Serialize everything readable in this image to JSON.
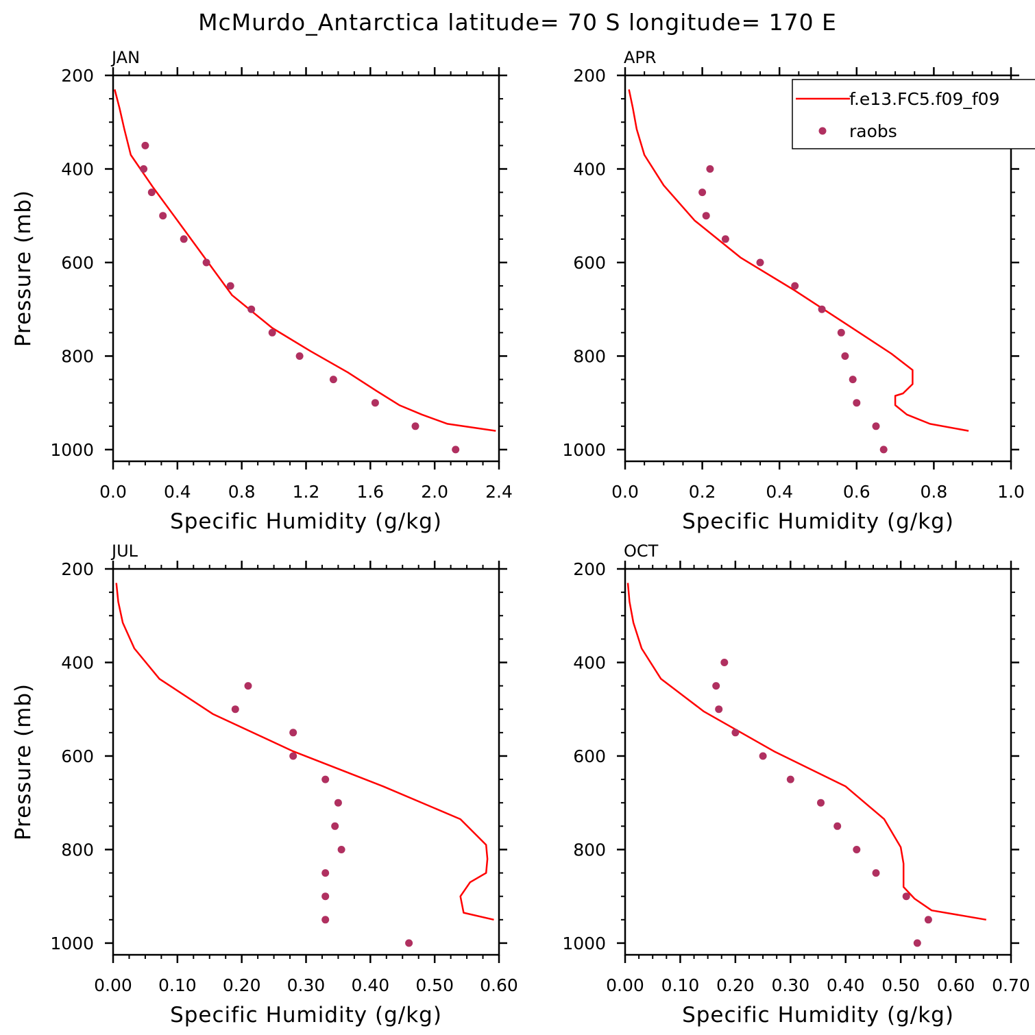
{
  "figure": {
    "title": "McMurdo_Antarctica  latitude= 70 S longitude= 170 E",
    "colors": {
      "model": "#ff0000",
      "obs": "#b03060",
      "axes": "#000000"
    }
  },
  "legend": {
    "entries": [
      {
        "label": "f.e13.FC5.f09_f09",
        "style": "line",
        "color": "#ff0000"
      },
      {
        "label": "raobs",
        "style": "marker",
        "color": "#b03060"
      }
    ]
  },
  "chart_data": [
    {
      "id": "jan",
      "type": "line",
      "title": "JAN",
      "xlabel": "Specific Humidity (g/kg)",
      "ylabel": "Pressure (mb)",
      "xlim": [
        0,
        2.4
      ],
      "ylim": [
        200,
        1025
      ],
      "y_inverted": true,
      "x_ticks": [
        "0.0",
        "0.4",
        "0.8",
        "1.2",
        "1.6",
        "2.0",
        "2.4"
      ],
      "y_ticks": [
        "200",
        "400",
        "600",
        "800",
        "1000"
      ],
      "series": [
        {
          "name": "f.e13.FC5.f09_f09",
          "style": "line",
          "x": [
            0.01,
            0.04,
            0.07,
            0.11,
            0.25,
            0.4,
            0.57,
            0.74,
            0.99,
            1.23,
            1.46,
            1.64,
            1.78,
            1.92,
            2.08,
            2.38
          ],
          "y": [
            230,
            270,
            315,
            370,
            440,
            510,
            590,
            670,
            740,
            790,
            835,
            875,
            905,
            925,
            945,
            960
          ]
        },
        {
          "name": "raobs",
          "style": "marker",
          "x": [
            0.2,
            0.19,
            0.24,
            0.31,
            0.44,
            0.58,
            0.73,
            0.86,
            0.99,
            1.16,
            1.37,
            1.63,
            1.88,
            2.13
          ],
          "y": [
            350,
            400,
            450,
            500,
            550,
            600,
            650,
            700,
            750,
            800,
            850,
            900,
            950,
            1000
          ]
        }
      ]
    },
    {
      "id": "apr",
      "type": "line",
      "title": "APR",
      "xlabel": "Specific Humidity (g/kg)",
      "ylabel": "",
      "xlim": [
        0,
        1.0
      ],
      "ylim": [
        200,
        1025
      ],
      "y_inverted": true,
      "x_ticks": [
        "0.0",
        "0.2",
        "0.4",
        "0.6",
        "0.8",
        "1.0"
      ],
      "y_ticks": [
        "200",
        "400",
        "600",
        "800",
        "1000"
      ],
      "series": [
        {
          "name": "f.e13.FC5.f09_f09",
          "style": "line",
          "x": [
            0.01,
            0.02,
            0.03,
            0.05,
            0.1,
            0.18,
            0.3,
            0.44,
            0.57,
            0.69,
            0.745,
            0.745,
            0.72,
            0.7,
            0.7,
            0.73,
            0.79,
            0.89
          ],
          "y": [
            230,
            270,
            315,
            370,
            435,
            510,
            590,
            660,
            730,
            795,
            830,
            860,
            880,
            885,
            905,
            925,
            945,
            960
          ]
        },
        {
          "name": "raobs",
          "style": "marker",
          "x": [
            0.22,
            0.2,
            0.21,
            0.26,
            0.35,
            0.44,
            0.51,
            0.56,
            0.57,
            0.59,
            0.6,
            0.65,
            0.67
          ],
          "y": [
            400,
            450,
            500,
            550,
            600,
            650,
            700,
            750,
            800,
            850,
            900,
            950,
            1000
          ]
        }
      ]
    },
    {
      "id": "jul",
      "type": "line",
      "title": "JUL",
      "xlabel": "Specific Humidity (g/kg)",
      "ylabel": "Pressure (mb)",
      "xlim": [
        0,
        0.6
      ],
      "ylim": [
        200,
        1025
      ],
      "y_inverted": true,
      "x_ticks": [
        "0.00",
        "0.10",
        "0.20",
        "0.30",
        "0.40",
        "0.50",
        "0.60"
      ],
      "y_ticks": [
        "200",
        "400",
        "600",
        "800",
        "1000"
      ],
      "series": [
        {
          "name": "f.e13.FC5.f09_f09",
          "style": "line",
          "x": [
            0.005,
            0.008,
            0.015,
            0.033,
            0.072,
            0.155,
            0.28,
            0.42,
            0.54,
            0.58,
            0.582,
            0.58,
            0.555,
            0.54,
            0.545,
            0.592
          ],
          "y": [
            230,
            270,
            315,
            370,
            435,
            510,
            590,
            665,
            735,
            790,
            820,
            850,
            870,
            900,
            935,
            950
          ]
        },
        {
          "name": "raobs",
          "style": "marker",
          "x": [
            0.21,
            0.19,
            0.28,
            0.28,
            0.33,
            0.35,
            0.345,
            0.355,
            0.33,
            0.33,
            0.33,
            0.46
          ],
          "y": [
            450,
            500,
            550,
            600,
            650,
            700,
            750,
            800,
            850,
            900,
            950,
            1000
          ]
        }
      ]
    },
    {
      "id": "oct",
      "type": "line",
      "title": "OCT",
      "xlabel": "Specific Humidity (g/kg)",
      "ylabel": "",
      "xlim": [
        0,
        0.7
      ],
      "ylim": [
        200,
        1025
      ],
      "y_inverted": true,
      "x_ticks": [
        "0.00",
        "0.10",
        "0.20",
        "0.30",
        "0.40",
        "0.50",
        "0.60",
        "0.70"
      ],
      "y_ticks": [
        "200",
        "400",
        "600",
        "800",
        "1000"
      ],
      "series": [
        {
          "name": "f.e13.FC5.f09_f09",
          "style": "line",
          "x": [
            0.005,
            0.008,
            0.015,
            0.03,
            0.065,
            0.143,
            0.27,
            0.4,
            0.47,
            0.5,
            0.505,
            0.505,
            0.525,
            0.556,
            0.655
          ],
          "y": [
            230,
            270,
            315,
            370,
            435,
            505,
            590,
            665,
            735,
            795,
            830,
            880,
            905,
            930,
            950
          ]
        },
        {
          "name": "raobs",
          "style": "marker",
          "x": [
            0.18,
            0.165,
            0.17,
            0.2,
            0.25,
            0.3,
            0.355,
            0.385,
            0.42,
            0.455,
            0.51,
            0.55,
            0.53
          ],
          "y": [
            400,
            450,
            500,
            550,
            600,
            650,
            700,
            750,
            800,
            850,
            900,
            950,
            1000
          ]
        }
      ]
    }
  ]
}
